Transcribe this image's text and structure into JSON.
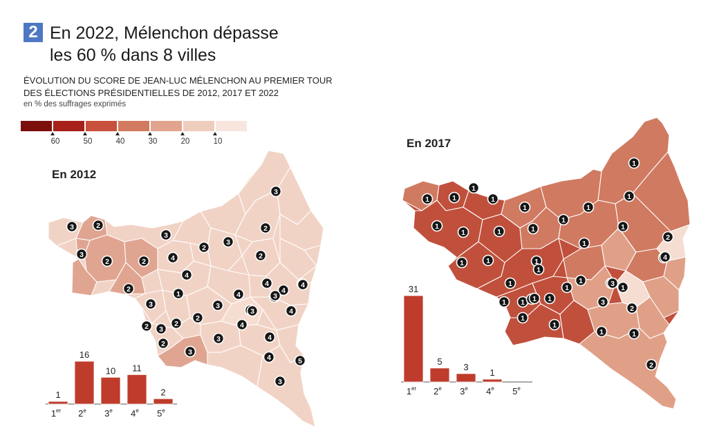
{
  "header": {
    "badge": "2",
    "title_line1": "En 2022, Mélenchon dépasse",
    "title_line2": "les 60 % dans 8 villes",
    "subtitle_line1": "ÉVOLUTION DU SCORE DE JEAN-LUC MÉLENCHON AU PREMIER TOUR",
    "subtitle_line2": "DES ÉLECTIONS PRÉSIDENTIELLES DE 2012, 2017 ET 2022",
    "unit": "en % des suffrages exprimés"
  },
  "legend": {
    "colors": [
      "#7a0f0c",
      "#a8201a",
      "#c8503c",
      "#d27a60",
      "#e2a48e",
      "#efcdbd",
      "#f8e6de"
    ],
    "ticks": [
      "60",
      "50",
      "40",
      "30",
      "20",
      "10"
    ]
  },
  "maps": [
    {
      "label": "En 2012",
      "palette": [
        "#f1d3c5",
        "#e0a591",
        "#f6ddd1"
      ],
      "chart_data": {
        "type": "bar",
        "categories": [
          "1er",
          "2e",
          "3e",
          "4e",
          "5e"
        ],
        "values": [
          1,
          16,
          10,
          11,
          2
        ],
        "ylim": [
          0,
          16
        ]
      },
      "markers": [
        {
          "r": "3"
        },
        {
          "r": "2"
        },
        {
          "r": "3"
        },
        {
          "r": "2"
        },
        {
          "r": "2"
        },
        {
          "r": "2"
        },
        {
          "r": "3"
        },
        {
          "r": "2"
        },
        {
          "r": "3"
        },
        {
          "r": "2"
        },
        {
          "r": "3"
        },
        {
          "r": "2"
        },
        {
          "r": "4"
        },
        {
          "r": "4"
        },
        {
          "r": "1"
        },
        {
          "r": "4"
        },
        {
          "r": "3"
        },
        {
          "r": "4"
        },
        {
          "r": "3"
        },
        {
          "r": "3"
        },
        {
          "r": "2"
        },
        {
          "r": "3"
        },
        {
          "r": "2"
        },
        {
          "r": "2"
        },
        {
          "r": "4"
        },
        {
          "r": "4"
        },
        {
          "r": "4"
        },
        {
          "r": "5"
        },
        {
          "r": "3"
        },
        {
          "r": "3"
        },
        {
          "r": "3"
        },
        {
          "r": "2"
        },
        {
          "r": "4"
        },
        {
          "r": "4"
        },
        {
          "r": "4"
        },
        {
          "r": "2"
        },
        {
          "r": "3"
        },
        {
          "r": "5"
        },
        {
          "r": "3"
        },
        {
          "r": "4"
        }
      ]
    },
    {
      "label": "En 2017",
      "palette": [
        "#c0503c",
        "#d07a61",
        "#e0a088",
        "#f6ddd1"
      ],
      "chart_data": {
        "type": "bar",
        "categories": [
          "1er",
          "2e",
          "3e",
          "4e",
          "5e"
        ],
        "values": [
          31,
          5,
          3,
          1,
          0
        ],
        "ylim": [
          0,
          31
        ]
      },
      "markers": [
        {
          "r": "1"
        },
        {
          "r": "1"
        },
        {
          "r": "1"
        },
        {
          "r": "1"
        },
        {
          "r": "1"
        },
        {
          "r": "1"
        },
        {
          "r": "1"
        },
        {
          "r": "1"
        },
        {
          "r": "1"
        },
        {
          "r": "1"
        },
        {
          "r": "1"
        },
        {
          "r": "1"
        },
        {
          "r": "1"
        },
        {
          "r": "1"
        },
        {
          "r": "1"
        },
        {
          "r": "1"
        },
        {
          "r": "1"
        },
        {
          "r": "1"
        },
        {
          "r": "1"
        },
        {
          "r": "1"
        },
        {
          "r": "1"
        },
        {
          "r": "1"
        },
        {
          "r": "1"
        },
        {
          "r": "1"
        },
        {
          "r": "1"
        },
        {
          "r": "2"
        },
        {
          "r": "1"
        },
        {
          "r": "1"
        },
        {
          "r": "4"
        },
        {
          "r": "3"
        },
        {
          "r": "3"
        },
        {
          "r": "2"
        },
        {
          "r": "1"
        },
        {
          "r": "1"
        },
        {
          "r": "1"
        },
        {
          "r": "3"
        },
        {
          "r": "2"
        },
        {
          "r": "1"
        },
        {
          "r": "1"
        },
        {
          "r": "1"
        }
      ]
    }
  ]
}
